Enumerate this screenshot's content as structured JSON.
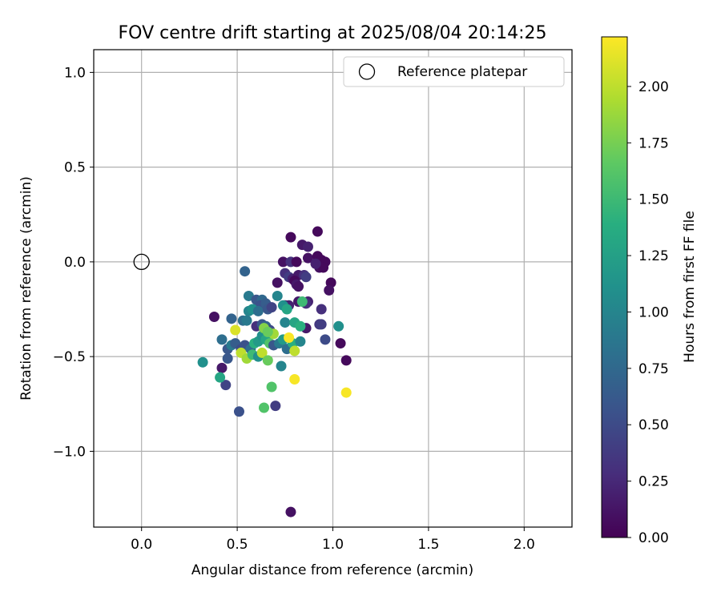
{
  "chart_data": {
    "type": "scatter",
    "title": "FOV centre drift starting at 2025/08/04 20:14:25",
    "xlabel": "Angular distance from reference (arcmin)",
    "ylabel": "Rotation from reference (arcmin)",
    "xlim": [
      -0.25,
      2.25
    ],
    "ylim": [
      -1.4,
      1.12
    ],
    "xticks": [
      0.0,
      0.5,
      1.0,
      1.5,
      2.0
    ],
    "xtick_labels": [
      "0.0",
      "0.5",
      "1.0",
      "1.5",
      "2.0"
    ],
    "yticks": [
      1.0,
      0.5,
      0.0,
      -0.5,
      -1.0
    ],
    "ytick_labels": [
      "1.0",
      "0.5",
      "0.0",
      "−0.5",
      "−1.0"
    ],
    "grid": true,
    "legend": {
      "position": "top-right",
      "entries": [
        "Reference platepar"
      ]
    },
    "reference_point": {
      "x": 0.0,
      "y": 0.0
    },
    "colorbar": {
      "label": "Hours from first FF file",
      "colormap": "viridis",
      "range": [
        0.0,
        2.22
      ],
      "ticks": [
        0.0,
        0.25,
        0.5,
        0.75,
        1.0,
        1.25,
        1.5,
        1.75,
        2.0
      ],
      "tick_labels": [
        "0.00",
        "0.25",
        "0.50",
        "0.75",
        "1.00",
        "1.25",
        "1.50",
        "1.75",
        "2.00"
      ]
    },
    "points": [
      {
        "x": 0.78,
        "y": 0.13,
        "c": 0.05
      },
      {
        "x": 0.92,
        "y": 0.16,
        "c": 0.05
      },
      {
        "x": 0.84,
        "y": 0.09,
        "c": 0.15
      },
      {
        "x": 0.87,
        "y": 0.08,
        "c": 0.2
      },
      {
        "x": 0.74,
        "y": 0.0,
        "c": 0.1
      },
      {
        "x": 0.78,
        "y": 0.0,
        "c": 0.3
      },
      {
        "x": 0.81,
        "y": 0.0,
        "c": 0.05
      },
      {
        "x": 0.87,
        "y": 0.02,
        "c": 0.1
      },
      {
        "x": 0.92,
        "y": 0.03,
        "c": 0.05
      },
      {
        "x": 0.94,
        "y": 0.01,
        "c": 0.05
      },
      {
        "x": 0.96,
        "y": 0.0,
        "c": 0.05
      },
      {
        "x": 0.93,
        "y": -0.03,
        "c": 0.1
      },
      {
        "x": 0.95,
        "y": -0.03,
        "c": 0.05
      },
      {
        "x": 0.91,
        "y": -0.01,
        "c": 0.2
      },
      {
        "x": 0.75,
        "y": -0.06,
        "c": 0.3
      },
      {
        "x": 0.77,
        "y": -0.08,
        "c": 0.4
      },
      {
        "x": 0.79,
        "y": -0.09,
        "c": 0.2
      },
      {
        "x": 0.82,
        "y": -0.07,
        "c": 0.15
      },
      {
        "x": 0.85,
        "y": -0.07,
        "c": 0.3
      },
      {
        "x": 0.86,
        "y": -0.08,
        "c": 0.4
      },
      {
        "x": 0.71,
        "y": -0.11,
        "c": 0.1
      },
      {
        "x": 0.8,
        "y": -0.1,
        "c": 0.05
      },
      {
        "x": 0.81,
        "y": -0.12,
        "c": 0.15
      },
      {
        "x": 0.82,
        "y": -0.13,
        "c": 0.1
      },
      {
        "x": 0.99,
        "y": -0.11,
        "c": 0.05
      },
      {
        "x": 0.98,
        "y": -0.15,
        "c": 0.1
      },
      {
        "x": 0.75,
        "y": -0.23,
        "c": 0.1
      },
      {
        "x": 0.77,
        "y": -0.23,
        "c": 0.2
      },
      {
        "x": 0.82,
        "y": -0.21,
        "c": 0.15
      },
      {
        "x": 0.87,
        "y": -0.21,
        "c": 0.2
      },
      {
        "x": 0.86,
        "y": -0.22,
        "c": 0.3
      },
      {
        "x": 0.94,
        "y": -0.25,
        "c": 0.3
      },
      {
        "x": 0.93,
        "y": -0.33,
        "c": 0.35
      },
      {
        "x": 0.94,
        "y": -0.33,
        "c": 0.4
      },
      {
        "x": 0.86,
        "y": -0.35,
        "c": 0.15
      },
      {
        "x": 0.96,
        "y": -0.41,
        "c": 0.5
      },
      {
        "x": 1.04,
        "y": -0.43,
        "c": 0.05
      },
      {
        "x": 1.07,
        "y": -0.52,
        "c": 0.05
      },
      {
        "x": 0.38,
        "y": -0.29,
        "c": 0.1
      },
      {
        "x": 0.42,
        "y": -0.56,
        "c": 0.15
      },
      {
        "x": 0.44,
        "y": -0.65,
        "c": 0.45
      },
      {
        "x": 0.51,
        "y": -0.79,
        "c": 0.55
      },
      {
        "x": 0.7,
        "y": -0.76,
        "c": 0.4
      },
      {
        "x": 0.78,
        "y": -1.32,
        "c": 0.1
      },
      {
        "x": 0.54,
        "y": -0.05,
        "c": 0.7
      },
      {
        "x": 0.56,
        "y": -0.18,
        "c": 0.9
      },
      {
        "x": 0.6,
        "y": -0.2,
        "c": 0.6
      },
      {
        "x": 0.63,
        "y": -0.2,
        "c": 0.75
      },
      {
        "x": 0.62,
        "y": -0.23,
        "c": 0.55
      },
      {
        "x": 0.65,
        "y": -0.22,
        "c": 0.65
      },
      {
        "x": 0.56,
        "y": -0.26,
        "c": 1.0
      },
      {
        "x": 0.58,
        "y": -0.25,
        "c": 1.1
      },
      {
        "x": 0.61,
        "y": -0.26,
        "c": 0.8
      },
      {
        "x": 0.66,
        "y": -0.25,
        "c": 0.6
      },
      {
        "x": 0.68,
        "y": -0.24,
        "c": 0.45
      },
      {
        "x": 0.71,
        "y": -0.18,
        "c": 1.0
      },
      {
        "x": 0.74,
        "y": -0.23,
        "c": 1.1
      },
      {
        "x": 0.76,
        "y": -0.25,
        "c": 1.3
      },
      {
        "x": 0.84,
        "y": -0.21,
        "c": 1.5
      },
      {
        "x": 0.47,
        "y": -0.3,
        "c": 0.7
      },
      {
        "x": 0.53,
        "y": -0.31,
        "c": 0.8
      },
      {
        "x": 0.55,
        "y": -0.31,
        "c": 0.9
      },
      {
        "x": 0.6,
        "y": -0.34,
        "c": 0.3
      },
      {
        "x": 0.63,
        "y": -0.33,
        "c": 0.6
      },
      {
        "x": 0.65,
        "y": -0.34,
        "c": 0.7
      },
      {
        "x": 0.67,
        "y": -0.36,
        "c": 0.5
      },
      {
        "x": 0.75,
        "y": -0.32,
        "c": 1.0
      },
      {
        "x": 0.8,
        "y": -0.32,
        "c": 1.3
      },
      {
        "x": 0.83,
        "y": -0.34,
        "c": 1.4
      },
      {
        "x": 0.42,
        "y": -0.41,
        "c": 0.8
      },
      {
        "x": 0.45,
        "y": -0.46,
        "c": 0.6
      },
      {
        "x": 0.47,
        "y": -0.44,
        "c": 0.9
      },
      {
        "x": 0.49,
        "y": -0.43,
        "c": 0.65
      },
      {
        "x": 0.52,
        "y": -0.46,
        "c": 0.5
      },
      {
        "x": 0.54,
        "y": -0.44,
        "c": 0.55
      },
      {
        "x": 0.57,
        "y": -0.46,
        "c": 0.8
      },
      {
        "x": 0.59,
        "y": -0.43,
        "c": 1.4
      },
      {
        "x": 0.61,
        "y": -0.42,
        "c": 1.2
      },
      {
        "x": 0.63,
        "y": -0.39,
        "c": 1.1
      },
      {
        "x": 0.65,
        "y": -0.41,
        "c": 1.3
      },
      {
        "x": 0.67,
        "y": -0.43,
        "c": 1.6
      },
      {
        "x": 0.69,
        "y": -0.44,
        "c": 0.6
      },
      {
        "x": 0.72,
        "y": -0.43,
        "c": 0.9
      },
      {
        "x": 0.74,
        "y": -0.41,
        "c": 1.2
      },
      {
        "x": 0.76,
        "y": -0.46,
        "c": 0.8
      },
      {
        "x": 0.79,
        "y": -0.43,
        "c": 1.4
      },
      {
        "x": 0.83,
        "y": -0.42,
        "c": 1.0
      },
      {
        "x": 0.45,
        "y": -0.51,
        "c": 0.6
      },
      {
        "x": 0.52,
        "y": -0.48,
        "c": 2.0
      },
      {
        "x": 0.55,
        "y": -0.51,
        "c": 1.9
      },
      {
        "x": 0.58,
        "y": -0.49,
        "c": 1.5
      },
      {
        "x": 0.61,
        "y": -0.5,
        "c": 1.1
      },
      {
        "x": 0.63,
        "y": -0.48,
        "c": 2.0
      },
      {
        "x": 0.66,
        "y": -0.52,
        "c": 1.7
      },
      {
        "x": 0.69,
        "y": -0.38,
        "c": 1.9
      },
      {
        "x": 0.64,
        "y": -0.35,
        "c": 1.8
      },
      {
        "x": 0.66,
        "y": -0.37,
        "c": 1.7
      },
      {
        "x": 0.77,
        "y": -0.4,
        "c": 2.2
      },
      {
        "x": 0.8,
        "y": -0.47,
        "c": 2.0
      },
      {
        "x": 0.73,
        "y": -0.55,
        "c": 1.0
      },
      {
        "x": 0.32,
        "y": -0.53,
        "c": 1.1
      },
      {
        "x": 0.41,
        "y": -0.61,
        "c": 1.3
      },
      {
        "x": 0.49,
        "y": -0.36,
        "c": 2.1
      },
      {
        "x": 0.8,
        "y": -0.62,
        "c": 2.2
      },
      {
        "x": 0.68,
        "y": -0.66,
        "c": 1.6
      },
      {
        "x": 0.64,
        "y": -0.77,
        "c": 1.6
      },
      {
        "x": 1.03,
        "y": -0.34,
        "c": 1.1
      },
      {
        "x": 1.07,
        "y": -0.69,
        "c": 2.2
      }
    ]
  }
}
